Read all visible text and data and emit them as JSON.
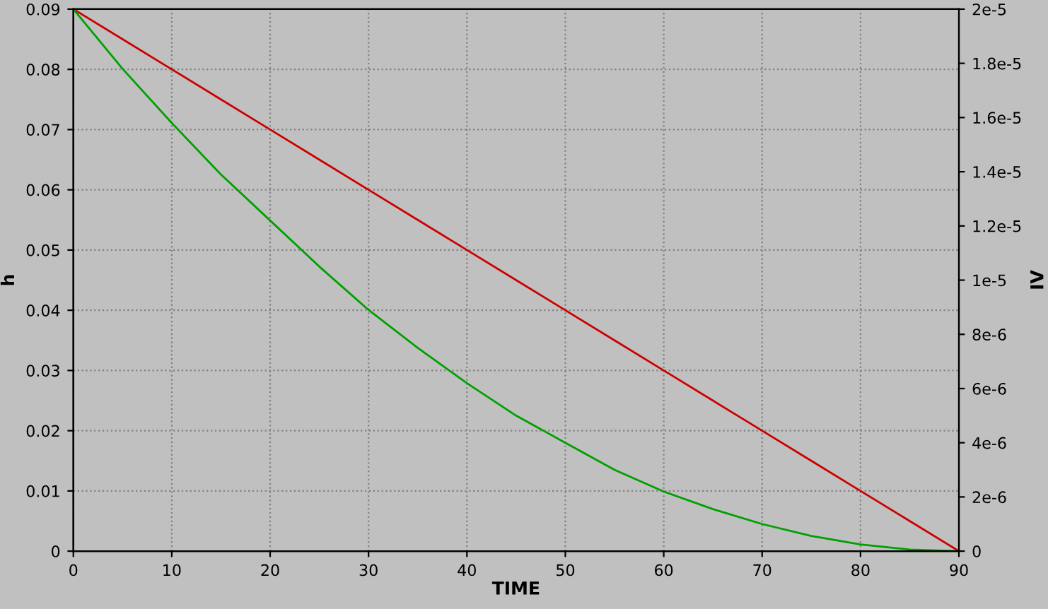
{
  "chart_data": {
    "type": "line",
    "xlabel": "TIME",
    "ylabel": "h",
    "y2label": "IV",
    "x": [
      0,
      5,
      10,
      15,
      20,
      25,
      30,
      35,
      40,
      45,
      50,
      55,
      60,
      65,
      70,
      75,
      80,
      85,
      90
    ],
    "series": [
      {
        "color": "#cc0000",
        "values": [
          0.09,
          0.085,
          0.08,
          0.075,
          0.07,
          0.065,
          0.06,
          0.055,
          0.05,
          0.045,
          0.04,
          0.035,
          0.03,
          0.025,
          0.02,
          0.015,
          0.01,
          0.005,
          0
        ]
      },
      {
        "color": "#00a000",
        "axis": "y2",
        "values": [
          2e-05,
          1.78e-05,
          1.58e-05,
          1.39e-05,
          1.22e-05,
          1.05e-05,
          8.9e-06,
          7.5e-06,
          6.2e-06,
          5e-06,
          4e-06,
          3e-06,
          2.2e-06,
          1.55e-06,
          1e-06,
          5.6e-07,
          2.5e-07,
          6e-08,
          0
        ]
      }
    ],
    "xlim": [
      0,
      90
    ],
    "xticks": [
      0,
      10,
      20,
      30,
      40,
      50,
      60,
      70,
      80,
      90
    ],
    "ylim": [
      0,
      0.09
    ],
    "yticks": [
      0,
      0.01,
      0.02,
      0.03,
      0.04,
      0.05,
      0.06,
      0.07,
      0.08,
      0.09
    ],
    "y2lim": [
      0,
      2e-05
    ],
    "y2ticks": [
      0,
      {
        "value": 2e-06,
        "label": "2e-6"
      },
      {
        "value": 4e-06,
        "label": "4e-6"
      },
      {
        "value": 6e-06,
        "label": "6e-6"
      },
      {
        "value": 8e-06,
        "label": "8e-6"
      },
      {
        "value": 1e-05,
        "label": "1e-5"
      },
      {
        "value": 1.2e-05,
        "label": "1.2e-5"
      },
      {
        "value": 1.4e-05,
        "label": "1.4e-5"
      },
      {
        "value": 1.6e-05,
        "label": "1.6e-5"
      },
      {
        "value": 1.8e-05,
        "label": "1.8e-5"
      },
      {
        "value": 2e-05,
        "label": "2e-5"
      }
    ],
    "grid": true,
    "line_style": "solid",
    "marker": "none"
  }
}
